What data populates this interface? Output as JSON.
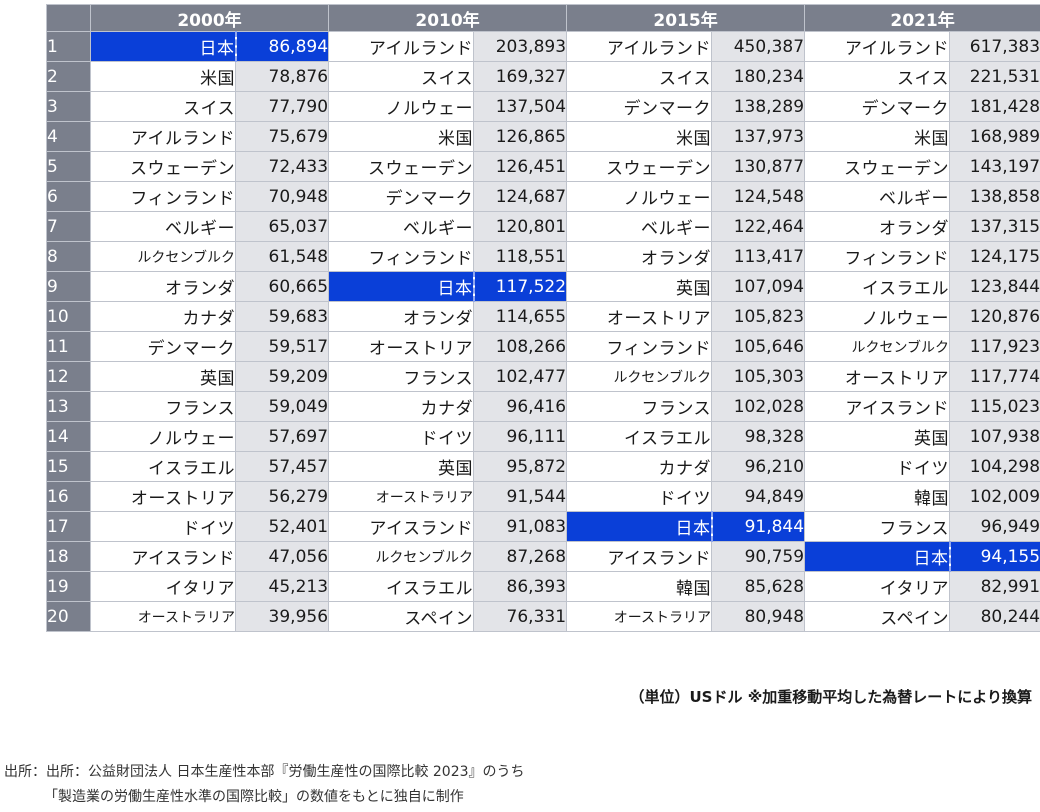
{
  "headers": [
    "2000年",
    "2010年",
    "2015年",
    "2021年"
  ],
  "rows": [
    [
      [
        "日本",
        "86,894"
      ],
      [
        "アイルランド",
        "203,893"
      ],
      [
        "アイルランド",
        "450,387"
      ],
      [
        "アイルランド",
        "617,383"
      ]
    ],
    [
      [
        "米国",
        "78,876"
      ],
      [
        "スイス",
        "169,327"
      ],
      [
        "スイス",
        "180,234"
      ],
      [
        "スイス",
        "221,531"
      ]
    ],
    [
      [
        "スイス",
        "77,790"
      ],
      [
        "ノルウェー",
        "137,504"
      ],
      [
        "デンマーク",
        "138,289"
      ],
      [
        "デンマーク",
        "181,428"
      ]
    ],
    [
      [
        "アイルランド",
        "75,679"
      ],
      [
        "米国",
        "126,865"
      ],
      [
        "米国",
        "137,973"
      ],
      [
        "米国",
        "168,989"
      ]
    ],
    [
      [
        "スウェーデン",
        "72,433"
      ],
      [
        "スウェーデン",
        "126,451"
      ],
      [
        "スウェーデン",
        "130,877"
      ],
      [
        "スウェーデン",
        "143,197"
      ]
    ],
    [
      [
        "フィンランド",
        "70,948"
      ],
      [
        "デンマーク",
        "124,687"
      ],
      [
        "ノルウェー",
        "124,548"
      ],
      [
        "ベルギー",
        "138,858"
      ]
    ],
    [
      [
        "ベルギー",
        "65,037"
      ],
      [
        "ベルギー",
        "120,801"
      ],
      [
        "ベルギー",
        "122,464"
      ],
      [
        "オランダ",
        "137,315"
      ]
    ],
    [
      [
        "ルクセンブルク",
        "61,548"
      ],
      [
        "フィンランド",
        "118,551"
      ],
      [
        "オランダ",
        "113,417"
      ],
      [
        "フィンランド",
        "124,175"
      ]
    ],
    [
      [
        "オランダ",
        "60,665"
      ],
      [
        "日本",
        "117,522"
      ],
      [
        "英国",
        "107,094"
      ],
      [
        "イスラエル",
        "123,844"
      ]
    ],
    [
      [
        "カナダ",
        "59,683"
      ],
      [
        "オランダ",
        "114,655"
      ],
      [
        "オーストリア",
        "105,823"
      ],
      [
        "ノルウェー",
        "120,876"
      ]
    ],
    [
      [
        "デンマーク",
        "59,517"
      ],
      [
        "オーストリア",
        "108,266"
      ],
      [
        "フィンランド",
        "105,646"
      ],
      [
        "ルクセンブルク",
        "117,923"
      ]
    ],
    [
      [
        "英国",
        "59,209"
      ],
      [
        "フランス",
        "102,477"
      ],
      [
        "ルクセンブルク",
        "105,303"
      ],
      [
        "オーストリア",
        "117,774"
      ]
    ],
    [
      [
        "フランス",
        "59,049"
      ],
      [
        "カナダ",
        "96,416"
      ],
      [
        "フランス",
        "102,028"
      ],
      [
        "アイスランド",
        "115,023"
      ]
    ],
    [
      [
        "ノルウェー",
        "57,697"
      ],
      [
        "ドイツ",
        "96,111"
      ],
      [
        "イスラエル",
        "98,328"
      ],
      [
        "英国",
        "107,938"
      ]
    ],
    [
      [
        "イスラエル",
        "57,457"
      ],
      [
        "英国",
        "95,872"
      ],
      [
        "カナダ",
        "96,210"
      ],
      [
        "ドイツ",
        "104,298"
      ]
    ],
    [
      [
        "オーストリア",
        "56,279"
      ],
      [
        "オーストラリア",
        "91,544"
      ],
      [
        "ドイツ",
        "94,849"
      ],
      [
        "韓国",
        "102,009"
      ]
    ],
    [
      [
        "ドイツ",
        "52,401"
      ],
      [
        "アイスランド",
        "91,083"
      ],
      [
        "日本",
        "91,844"
      ],
      [
        "フランス",
        "96,949"
      ]
    ],
    [
      [
        "アイスランド",
        "47,056"
      ],
      [
        "ルクセンブルク",
        "87,268"
      ],
      [
        "アイスランド",
        "90,759"
      ],
      [
        "日本",
        "94,155"
      ]
    ],
    [
      [
        "イタリア",
        "45,213"
      ],
      [
        "イスラエル",
        "86,393"
      ],
      [
        "韓国",
        "85,628"
      ],
      [
        "イタリア",
        "82,991"
      ]
    ],
    [
      [
        "オーストラリア",
        "39,956"
      ],
      [
        "スペイン",
        "76,331"
      ],
      [
        "オーストラリア",
        "80,948"
      ],
      [
        "スペイン",
        "80,244"
      ]
    ]
  ],
  "highlight_country": "日本",
  "highlight_color": "#0a3fd8",
  "unit_note": "（単位）USドル ※加重移動平均した為替レートにより換算",
  "source_line1": "出所：出所：公益財団法人 日本生産性本部『労働生産性の国際比較 2023』のうち",
  "source_line2": "「製造業の労働生産性水準の国際比較」の数値をもとに独自に制作"
}
